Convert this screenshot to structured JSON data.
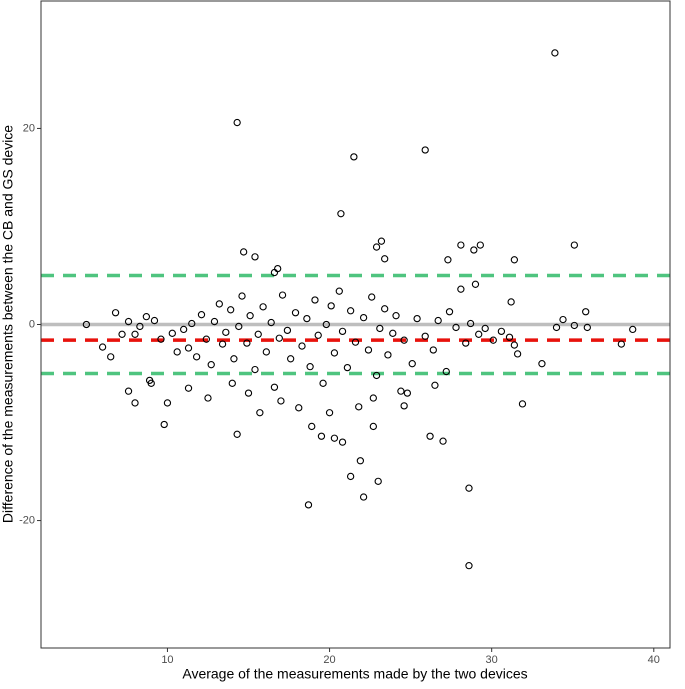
{
  "chart_data": {
    "type": "scatter",
    "x_label": "Average of the measurements made by the two devices",
    "y_label": "Difference of the measurements between the CB and GS device",
    "xlim": [
      2.2,
      41
    ],
    "ylim": [
      -33,
      33
    ],
    "xticks": [
      10,
      20,
      30,
      40
    ],
    "yticks": [
      -20,
      0,
      20
    ],
    "marker_color": "#000000",
    "reference_lines": [
      {
        "value": 0,
        "color": "#bebebe",
        "style": "solid"
      },
      {
        "value": -1.6,
        "color": "#e8120c",
        "style": "dashed"
      },
      {
        "value": 5.0,
        "color": "#4fc47f",
        "style": "dashed"
      },
      {
        "value": -5.0,
        "color": "#4fc47f",
        "style": "dashed"
      }
    ],
    "x": [
      33.9,
      14.3,
      25.9,
      21.5,
      20.7,
      23.2,
      22.9,
      35.1,
      29.3,
      28.9,
      28.1,
      31.4,
      14.7,
      15.4,
      16.8,
      16.6,
      27.3,
      23.4,
      14.3,
      9.8,
      18.7,
      21.3,
      21.9,
      23.0,
      22.1,
      28.6,
      28.6,
      26.2,
      27.0,
      31.9,
      33.1,
      38.7,
      38.0,
      35.8,
      35.1,
      19.5,
      20.3,
      20.8,
      22.7,
      24.6,
      8.0,
      7.6,
      8.9,
      11.3,
      31.2,
      31.6,
      5.0,
      6.0,
      6.5,
      6.8,
      7.2,
      7.6,
      8.3,
      8.7,
      9.2,
      9.6,
      10.3,
      10.6,
      11.0,
      11.3,
      11.5,
      11.8,
      12.1,
      12.4,
      12.7,
      12.9,
      13.2,
      13.4,
      13.6,
      13.9,
      14.1,
      14.4,
      14.6,
      14.9,
      15.1,
      15.4,
      15.6,
      15.9,
      16.1,
      16.4,
      16.6,
      16.9,
      17.1,
      17.4,
      17.6,
      17.9,
      18.1,
      18.3,
      18.6,
      18.8,
      19.1,
      19.3,
      19.6,
      19.8,
      20.1,
      20.3,
      20.6,
      20.8,
      21.1,
      21.3,
      21.6,
      21.8,
      22.1,
      22.4,
      22.6,
      22.9,
      23.1,
      23.4,
      23.6,
      23.9,
      24.1,
      24.4,
      24.6,
      25.1,
      25.4,
      25.9,
      26.4,
      26.7,
      27.2,
      27.4,
      27.8,
      28.1,
      28.4,
      28.7,
      29.0,
      29.2,
      29.6,
      30.1,
      30.6,
      31.1,
      31.4,
      34.0,
      34.4,
      35.9,
      8.0,
      9.0,
      10.0,
      12.5,
      14.0,
      15.0,
      15.7,
      17.0,
      18.9,
      20.0,
      22.7,
      24.8,
      26.5
    ],
    "values": [
      27.7,
      20.6,
      17.8,
      17.1,
      11.3,
      8.5,
      7.9,
      8.1,
      8.1,
      7.6,
      8.1,
      6.6,
      7.4,
      6.9,
      5.7,
      5.3,
      6.6,
      6.7,
      -11.2,
      -10.2,
      -18.4,
      -15.5,
      -13.9,
      -16.0,
      -17.6,
      -16.7,
      -24.6,
      -11.4,
      -11.9,
      -8.1,
      -4.0,
      -0.5,
      -2.0,
      1.3,
      -0.1,
      -11.4,
      -11.6,
      -12.0,
      -10.4,
      -8.3,
      -8.0,
      -6.8,
      -5.7,
      -6.5,
      2.3,
      -3.0,
      0.0,
      -2.3,
      -3.3,
      1.2,
      -1.0,
      0.3,
      -0.2,
      0.8,
      0.4,
      -1.5,
      -0.9,
      -2.8,
      -0.5,
      -2.4,
      0.1,
      -3.3,
      1.0,
      -1.5,
      -4.1,
      0.3,
      2.1,
      -2.0,
      -0.8,
      1.5,
      -3.5,
      -0.2,
      2.9,
      -1.9,
      0.9,
      -4.6,
      -1.0,
      1.8,
      -2.8,
      0.2,
      -6.4,
      -1.4,
      3.0,
      -0.6,
      -3.5,
      1.2,
      -8.5,
      -2.2,
      0.6,
      -4.3,
      2.5,
      -1.1,
      -6.0,
      0.0,
      1.9,
      -2.9,
      3.4,
      -0.7,
      -4.4,
      1.4,
      -1.8,
      -8.4,
      0.7,
      -2.6,
      2.8,
      -5.2,
      -0.4,
      1.6,
      -3.1,
      -0.9,
      0.9,
      -6.8,
      -1.6,
      -4.0,
      0.6,
      -1.2,
      -2.6,
      0.4,
      -4.8,
      1.3,
      -0.3,
      3.6,
      -1.9,
      0.1,
      4.1,
      -1.0,
      -0.4,
      -1.6,
      -0.7,
      -1.3,
      -2.1,
      -0.3,
      0.5,
      -0.3,
      -1.0,
      -6.0,
      -8.0,
      -7.5,
      -6.0,
      -7.0,
      -9.0,
      -7.8,
      -10.4,
      -9.0,
      -7.5,
      -7.0,
      -6.2
    ]
  }
}
